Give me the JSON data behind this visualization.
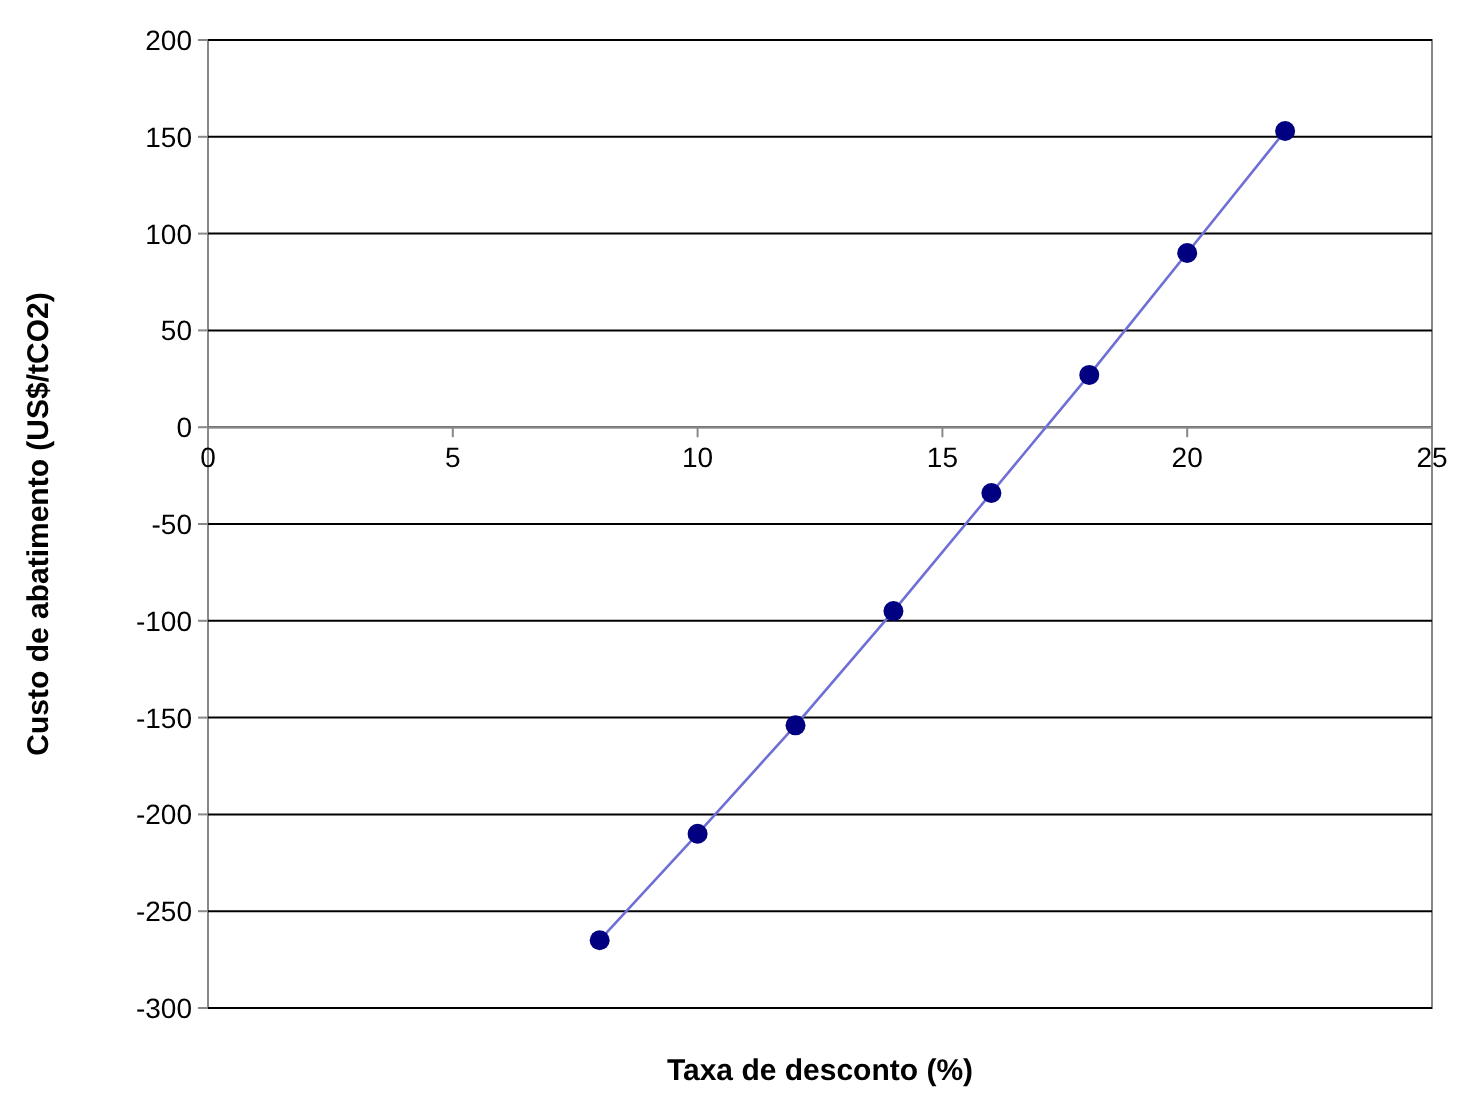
{
  "chart_data": {
    "type": "line",
    "xlabel": "Taxa de desconto (%)",
    "ylabel": "Custo de abatimento (US$/tCO2)",
    "x": [
      8,
      10,
      12,
      14,
      16,
      18,
      20,
      22
    ],
    "series": [
      {
        "color": "#000080",
        "values": [
          -265,
          -210,
          -154,
          -95,
          -34,
          27,
          90,
          153
        ]
      }
    ],
    "xlim": [
      0,
      25
    ],
    "xticks": [
      0,
      5,
      10,
      15,
      20,
      25
    ],
    "ylim": [
      -300,
      200
    ],
    "yticks": [
      -300,
      -250,
      -200,
      -150,
      -100,
      -50,
      0,
      50,
      100,
      150,
      200
    ],
    "grid": "y",
    "marker": "circle",
    "line_style": "solid"
  }
}
